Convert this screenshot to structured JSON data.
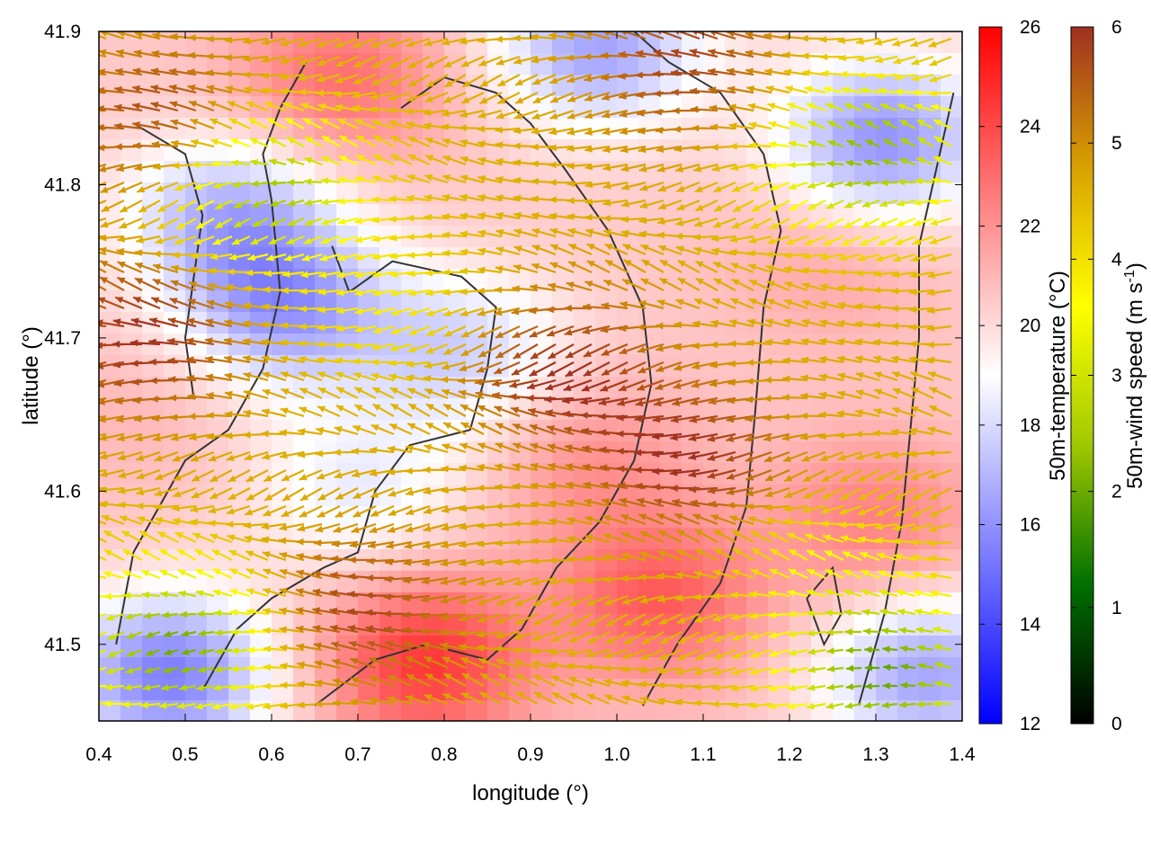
{
  "chart_data": {
    "type": "heatmap",
    "xlabel": "longitude (°)",
    "ylabel": "latitude (°)",
    "xlim": [
      0.4,
      1.4
    ],
    "ylim": [
      41.45,
      41.9
    ],
    "x_ticks": [
      "0.4",
      "0.5",
      "0.6",
      "0.7",
      "0.8",
      "0.9",
      "1.0",
      "1.1",
      "1.2",
      "1.3",
      "1.4"
    ],
    "x_tick_values": [
      0.4,
      0.5,
      0.6,
      0.7,
      0.8,
      0.9,
      1.0,
      1.1,
      1.2,
      1.3,
      1.4
    ],
    "y_ticks": [
      "41.5",
      "41.6",
      "41.7",
      "41.8",
      "41.9"
    ],
    "y_tick_values": [
      41.5,
      41.6,
      41.7,
      41.8,
      41.9
    ],
    "temperature_colorbar": {
      "label": "50m-temperature (°C)",
      "range": [
        12,
        26
      ],
      "ticks": [
        "12",
        "14",
        "16",
        "18",
        "20",
        "22",
        "24",
        "26"
      ],
      "tick_values": [
        12,
        14,
        16,
        18,
        20,
        22,
        24,
        26
      ],
      "colors": [
        "#0000ff",
        "#ffffff",
        "#ff0000"
      ]
    },
    "wind_colorbar": {
      "label_main": "50m-wind speed (m s",
      "label_sup": "-1",
      "label_end": ")",
      "range": [
        0,
        6
      ],
      "ticks": [
        "0",
        "1",
        "2",
        "3",
        "4",
        "5",
        "6"
      ],
      "tick_values": [
        0,
        1,
        2,
        3,
        4,
        5,
        6
      ],
      "colors": [
        "#000000",
        "#007000",
        "#a0c800",
        "#ffff00",
        "#d8a000",
        "#a03020"
      ]
    },
    "temperature_field": {
      "background_c": 20.5,
      "cool_regions": [
        {
          "lon": 0.62,
          "lat": 41.72,
          "t": 16.5
        },
        {
          "lon": 0.82,
          "lat": 41.69,
          "t": 17.8
        },
        {
          "lon": 0.55,
          "lat": 41.78,
          "t": 17.0
        },
        {
          "lon": 0.48,
          "lat": 41.48,
          "t": 15.5
        },
        {
          "lon": 1.31,
          "lat": 41.83,
          "t": 16.0
        },
        {
          "lon": 1.36,
          "lat": 41.48,
          "t": 16.5
        },
        {
          "lon": 0.7,
          "lat": 41.6,
          "t": 18.5
        },
        {
          "lon": 0.98,
          "lat": 41.89,
          "t": 16.5
        }
      ],
      "warm_regions": [
        {
          "lon": 0.78,
          "lat": 41.49,
          "t": 24.5
        },
        {
          "lon": 1.05,
          "lat": 41.53,
          "t": 23.5
        },
        {
          "lon": 0.68,
          "lat": 41.87,
          "t": 23.0
        },
        {
          "lon": 0.97,
          "lat": 41.62,
          "t": 22.0
        },
        {
          "lon": 1.3,
          "lat": 41.58,
          "t": 22.5
        },
        {
          "lon": 1.25,
          "lat": 41.75,
          "t": 21.5
        },
        {
          "lon": 0.45,
          "lat": 41.65,
          "t": 21.0
        }
      ]
    },
    "wind_field": {
      "direction": "mostly westward (pointing to decreasing longitude)",
      "strong_zones": [
        {
          "lon": 0.95,
          "lat": 41.68,
          "speed": 6.0
        },
        {
          "lon": 0.5,
          "lat": 41.84,
          "speed": 6.0
        },
        {
          "lon": 0.47,
          "lat": 41.7,
          "speed": 6.0
        },
        {
          "lon": 1.1,
          "lat": 41.62,
          "speed": 6.0
        },
        {
          "lon": 0.72,
          "lat": 41.52,
          "speed": 5.8
        },
        {
          "lon": 1.1,
          "lat": 41.88,
          "speed": 5.8
        }
      ],
      "weak_zones": [
        {
          "lon": 0.6,
          "lat": 41.8,
          "speed": 2.2
        },
        {
          "lon": 0.5,
          "lat": 41.5,
          "speed": 2.0
        },
        {
          "lon": 1.3,
          "lat": 41.82,
          "speed": 2.2
        },
        {
          "lon": 1.32,
          "lat": 41.48,
          "speed": 2.0
        },
        {
          "lon": 0.75,
          "lat": 41.72,
          "speed": 3.8
        },
        {
          "lon": 1.25,
          "lat": 41.55,
          "speed": 3.8
        }
      ],
      "base_speed": 4.6
    },
    "contours": [
      [
        [
          0.42,
          41.5
        ],
        [
          0.44,
          41.56
        ],
        [
          0.47,
          41.59
        ],
        [
          0.5,
          41.62
        ],
        [
          0.55,
          41.64
        ],
        [
          0.59,
          41.68
        ],
        [
          0.61,
          41.73
        ],
        [
          0.6,
          41.79
        ],
        [
          0.59,
          41.82
        ],
        [
          0.61,
          41.85
        ],
        [
          0.64,
          41.88
        ]
      ],
      [
        [
          0.52,
          41.47
        ],
        [
          0.56,
          41.51
        ],
        [
          0.6,
          41.53
        ],
        [
          0.66,
          41.55
        ],
        [
          0.7,
          41.56
        ],
        [
          0.72,
          41.6
        ],
        [
          0.76,
          41.63
        ],
        [
          0.83,
          41.64
        ],
        [
          0.85,
          41.68
        ],
        [
          0.86,
          41.72
        ],
        [
          0.82,
          41.74
        ],
        [
          0.74,
          41.75
        ],
        [
          0.69,
          41.73
        ],
        [
          0.67,
          41.76
        ]
      ],
      [
        [
          0.65,
          41.46
        ],
        [
          0.72,
          41.49
        ],
        [
          0.78,
          41.5
        ],
        [
          0.85,
          41.49
        ],
        [
          0.89,
          41.51
        ],
        [
          0.93,
          41.55
        ],
        [
          0.98,
          41.58
        ],
        [
          1.02,
          41.62
        ],
        [
          1.04,
          41.67
        ],
        [
          1.03,
          41.72
        ],
        [
          0.99,
          41.77
        ],
        [
          0.94,
          41.81
        ],
        [
          0.9,
          41.84
        ],
        [
          0.86,
          41.86
        ],
        [
          0.8,
          41.87
        ],
        [
          0.75,
          41.85
        ]
      ],
      [
        [
          1.03,
          41.46
        ],
        [
          1.07,
          41.5
        ],
        [
          1.12,
          41.54
        ],
        [
          1.15,
          41.59
        ],
        [
          1.16,
          41.65
        ],
        [
          1.17,
          41.72
        ],
        [
          1.19,
          41.77
        ],
        [
          1.17,
          41.82
        ],
        [
          1.12,
          41.86
        ],
        [
          1.06,
          41.88
        ],
        [
          1.02,
          41.9
        ]
      ],
      [
        [
          1.28,
          41.46
        ],
        [
          1.31,
          41.52
        ],
        [
          1.33,
          41.58
        ],
        [
          1.34,
          41.64
        ],
        [
          1.35,
          41.7
        ],
        [
          1.35,
          41.76
        ],
        [
          1.37,
          41.81
        ],
        [
          1.39,
          41.86
        ]
      ],
      [
        [
          0.44,
          41.84
        ],
        [
          0.5,
          41.82
        ],
        [
          0.52,
          41.78
        ],
        [
          0.51,
          41.74
        ],
        [
          0.5,
          41.7
        ],
        [
          0.51,
          41.66
        ]
      ],
      [
        [
          1.22,
          41.53
        ],
        [
          1.25,
          41.55
        ],
        [
          1.26,
          41.52
        ],
        [
          1.24,
          41.5
        ],
        [
          1.22,
          41.53
        ]
      ]
    ]
  }
}
